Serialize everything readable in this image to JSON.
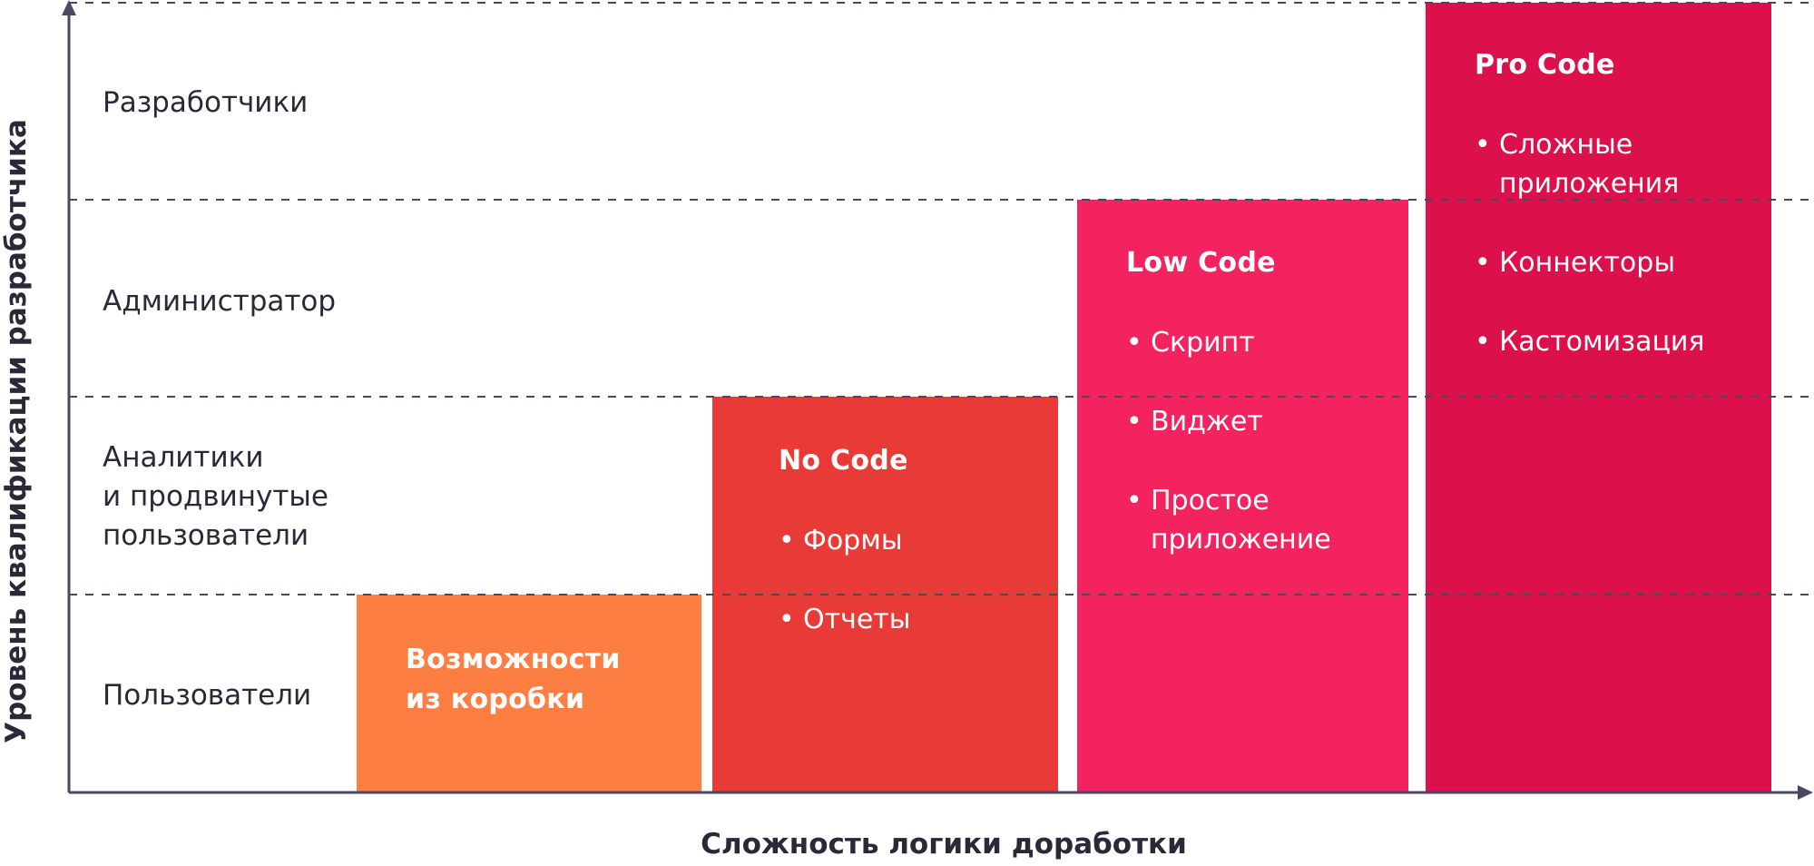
{
  "y_axis_label": "Уровень квалификации разработчика",
  "x_axis_label": "Сложность логики доработки",
  "levels": [
    {
      "label": "Разработчики"
    },
    {
      "label": "Администратор"
    },
    {
      "label": "Аналитики\nи продвинутые\nпользователи"
    },
    {
      "label": "Пользователи"
    }
  ],
  "blocks": [
    {
      "title": "Возможности\nиз коробки",
      "items": [],
      "color": "#fc7e42"
    },
    {
      "title": "No Code",
      "items": [
        "Формы",
        "Отчеты"
      ],
      "color": "#e83a37"
    },
    {
      "title": "Low Code",
      "items": [
        "Скрипт",
        "Виджет",
        "Простое\nприложение"
      ],
      "color": "#f2235e"
    },
    {
      "title": "Pro Code",
      "items": [
        "Сложные\nприложения",
        "Коннекторы",
        "Кастомизация"
      ],
      "color": "#dc104a"
    }
  ],
  "colors": {
    "axis": "#4a4760",
    "text": "#2b2838"
  }
}
